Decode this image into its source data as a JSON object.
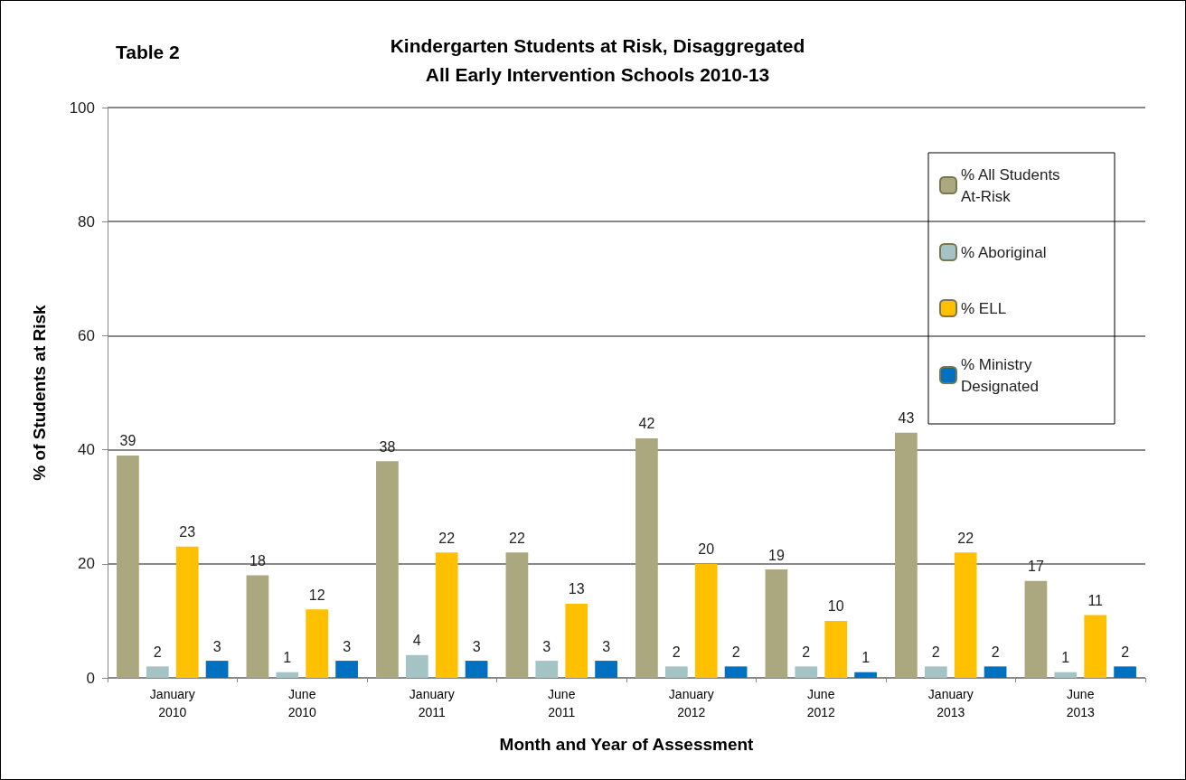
{
  "chart_data": {
    "type": "bar",
    "title": "Kindergarten Students at Risk, Disaggregated\nAll Early Intervention Schools 2010-13",
    "annotations": [
      "Table 2"
    ],
    "xlabel": "Month and Year of Assessment",
    "ylabel": "% of Students at Risk",
    "categories": [
      "January 2010",
      "June 2010",
      "January 2011",
      "June 2011",
      "January 2012",
      "June 2012",
      "January 2013",
      "June 2013"
    ],
    "series": [
      {
        "name": "% All Students At-Risk",
        "color": "#aba77e",
        "values": [
          39,
          18,
          38,
          22,
          42,
          19,
          43,
          17
        ]
      },
      {
        "name": "% Aboriginal",
        "color": "#a3c3c4",
        "values": [
          2,
          1,
          4,
          3,
          2,
          2,
          2,
          1
        ]
      },
      {
        "name": "% ELL",
        "color": "#ffc000",
        "values": [
          23,
          12,
          22,
          13,
          20,
          10,
          22,
          11
        ]
      },
      {
        "name": "% Ministry Designated",
        "color": "#0070c0",
        "values": [
          3,
          3,
          3,
          3,
          2,
          1,
          2,
          2
        ]
      }
    ],
    "ylim": [
      0,
      100
    ],
    "yticks": [
      0,
      20,
      40,
      60,
      80,
      100
    ],
    "grid": "y",
    "legend": "top right",
    "data_labels": true
  }
}
